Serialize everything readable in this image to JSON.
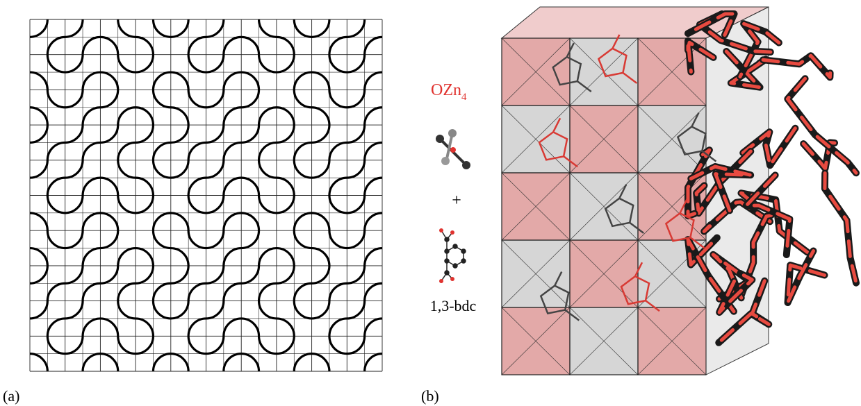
{
  "labels": {
    "a": "(a)",
    "b": "(b)"
  },
  "legend": {
    "node": "OZn",
    "node_subscript": "4",
    "plus": "+",
    "linker": "1,3-bdc"
  }
}
